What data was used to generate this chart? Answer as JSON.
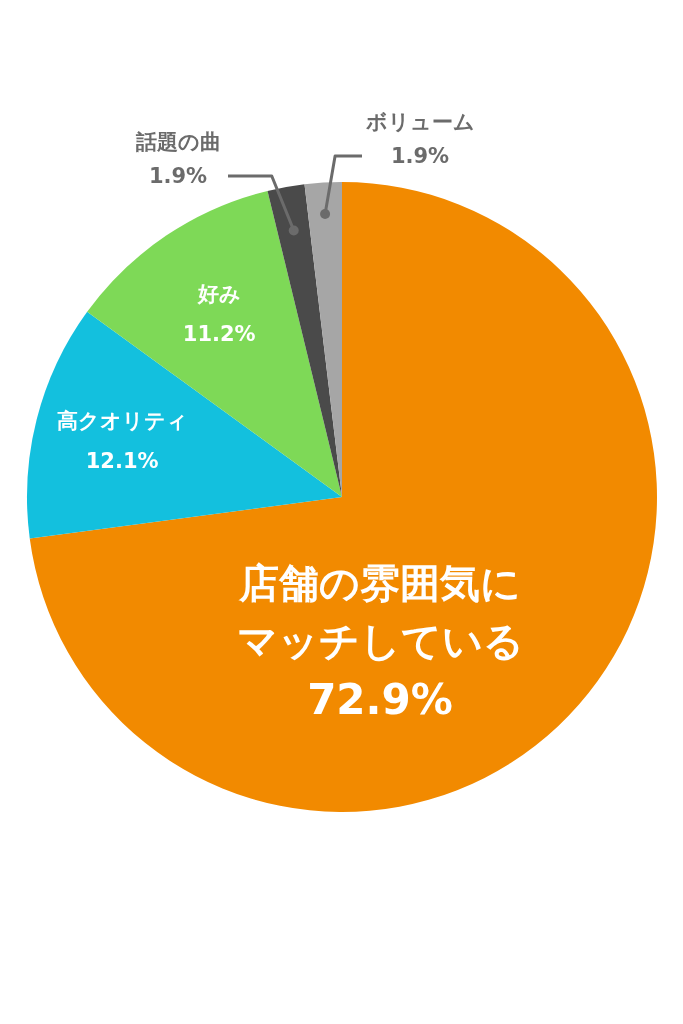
{
  "chart_data": {
    "type": "pie",
    "categories": [
      "店舗の雰囲気にマッチしている",
      "高クオリティ",
      "好み",
      "話題の曲",
      "ボリューム"
    ],
    "values": [
      72.9,
      12.1,
      11.2,
      1.9,
      1.9
    ],
    "value_labels": [
      "72.9%",
      "12.1%",
      "11.2%",
      "1.9%",
      "1.9%"
    ],
    "colors": [
      "#f28a00",
      "#13c0de",
      "#7ed957",
      "#4a4a4a",
      "#a6a6a6"
    ]
  }
}
